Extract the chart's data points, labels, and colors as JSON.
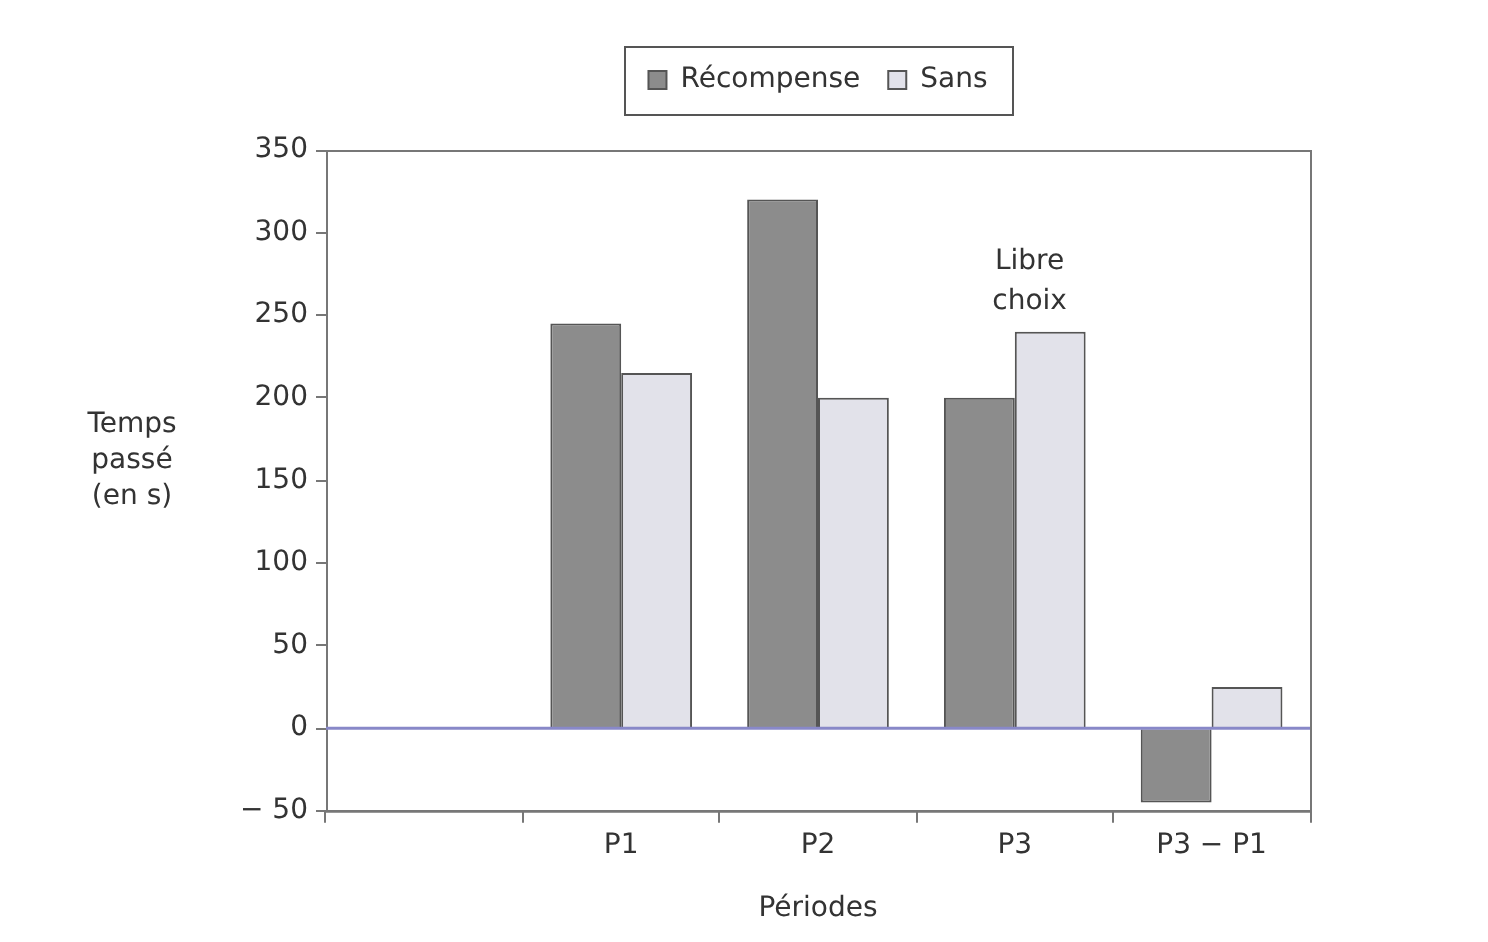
{
  "chart_data": {
    "type": "bar",
    "categories": [
      null,
      "P1",
      "P2",
      "P3",
      "P3 − P1"
    ],
    "series": [
      {
        "name": "Récompense",
        "color": "#8c8c8c",
        "values": [
          null,
          245,
          320,
          200,
          -45
        ]
      },
      {
        "name": "Sans",
        "color": "#e2e2ea",
        "values": [
          null,
          215,
          200,
          240,
          25
        ]
      }
    ],
    "ylim": [
      -50,
      350
    ],
    "yticks": [
      {
        "value": -50,
        "label": "− 50"
      },
      0,
      50,
      100,
      150,
      200,
      250,
      300,
      350
    ],
    "xlabel": "Périodes",
    "ylabel": "Temps passé (en s)",
    "legend": "top",
    "grid": false,
    "annotations": [
      "Libre choix"
    ],
    "ref_lines": [
      {
        "axis": "y",
        "value": 0,
        "color": "#8888c8"
      }
    ]
  }
}
